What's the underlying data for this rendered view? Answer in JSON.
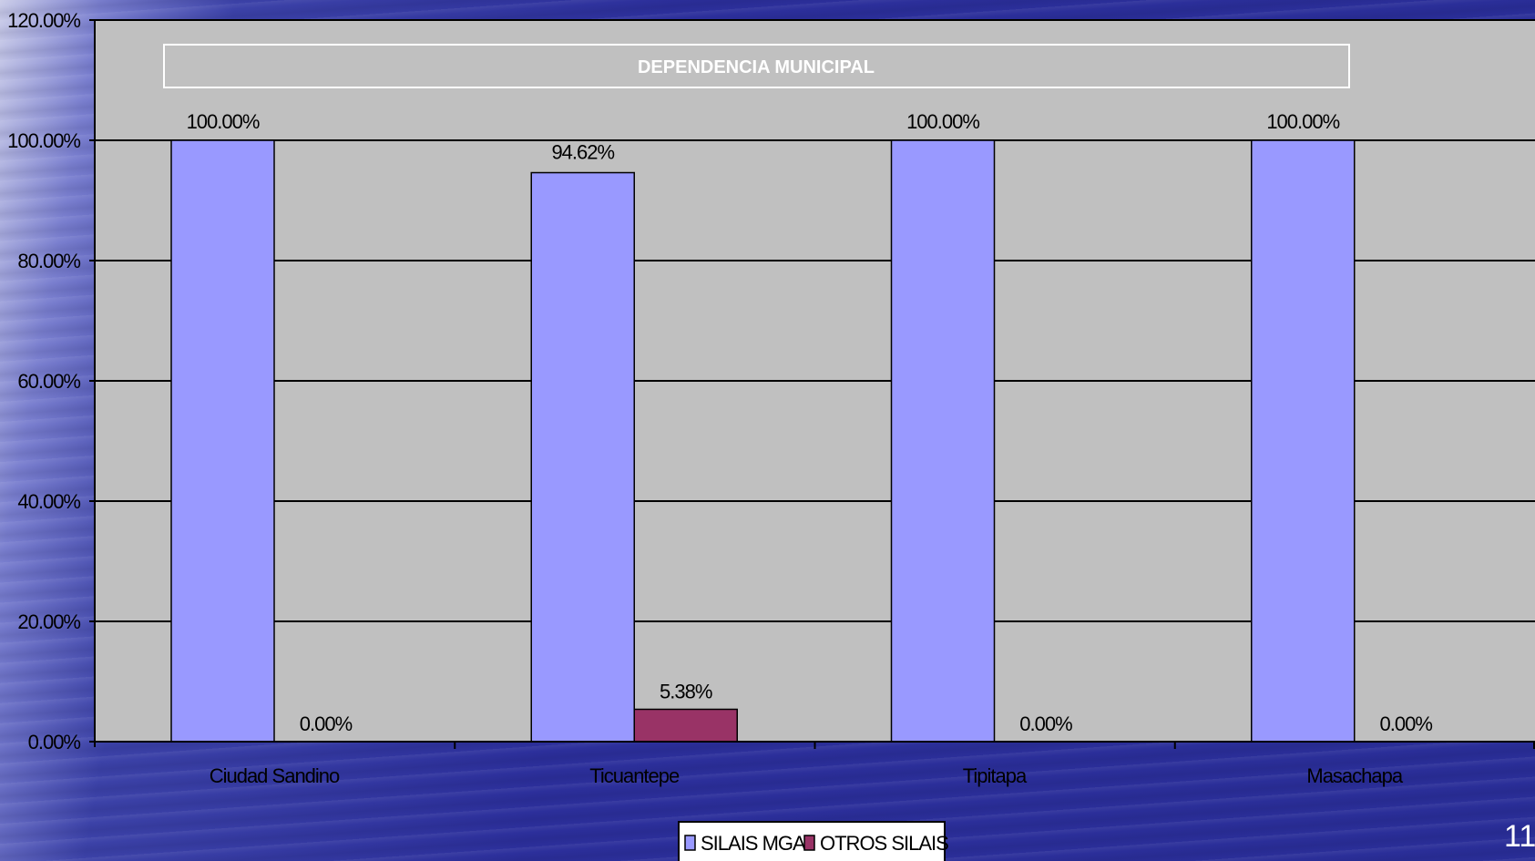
{
  "slide_number": "11",
  "colors": {
    "plot_bg": "#c0c0c0",
    "series1": "#9999ff",
    "series2": "#993366",
    "gridline": "#000000",
    "title_text": "#ffffff"
  },
  "chart_data": {
    "type": "bar",
    "title": "DEPENDENCIA MUNICIPAL",
    "categories": [
      "Ciudad Sandino",
      "Ticuantepe",
      "Tipitapa",
      "Masachapa"
    ],
    "series": [
      {
        "name": "SILAIS MGA",
        "values": [
          100.0,
          94.62,
          100.0,
          100.0
        ],
        "labels": [
          "100.00%",
          "94.62%",
          "100.00%",
          "100.00%"
        ]
      },
      {
        "name": "OTROS SILAIS",
        "values": [
          0.0,
          5.38,
          0.0,
          0.0
        ],
        "labels": [
          "0.00%",
          "5.38%",
          "0.00%",
          "0.00%"
        ]
      }
    ],
    "ylim": [
      0,
      120
    ],
    "yticks": [
      0,
      20,
      40,
      60,
      80,
      100,
      120
    ],
    "ytick_labels": [
      "0.00%",
      "20.00%",
      "40.00%",
      "60.00%",
      "80.00%",
      "100.00%",
      "120.00%"
    ],
    "grid": true,
    "legend_position": "bottom",
    "xlabel": "",
    "ylabel": ""
  }
}
